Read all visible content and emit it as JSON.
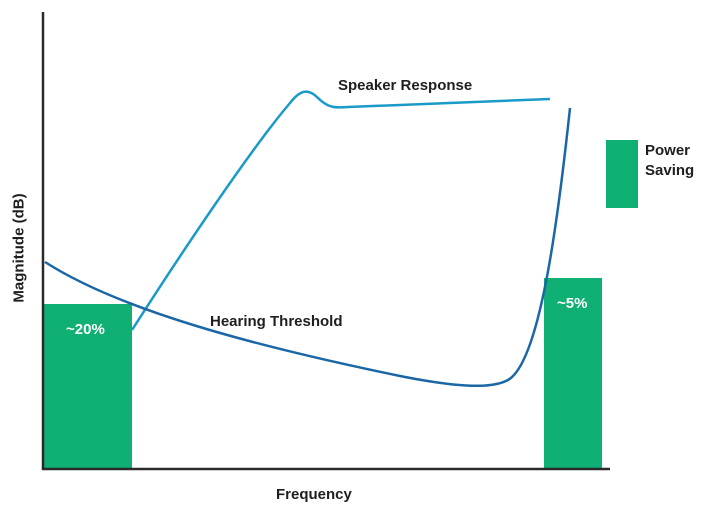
{
  "axes": {
    "xlabel": "Frequency",
    "ylabel": "Magnitude (dB)"
  },
  "curves": {
    "speaker_response": {
      "label": "Speaker Response",
      "color": "#1a9ac9"
    },
    "hearing_threshold": {
      "label": "Hearing Threshold",
      "color": "#1b67a6"
    }
  },
  "regions": {
    "low": {
      "label": "~20%",
      "color": "#10b074"
    },
    "high": {
      "label": "~5%",
      "color": "#10b074"
    }
  },
  "legend": {
    "label_line1": "Power",
    "label_line2": "Saving",
    "color": "#10b074"
  }
}
